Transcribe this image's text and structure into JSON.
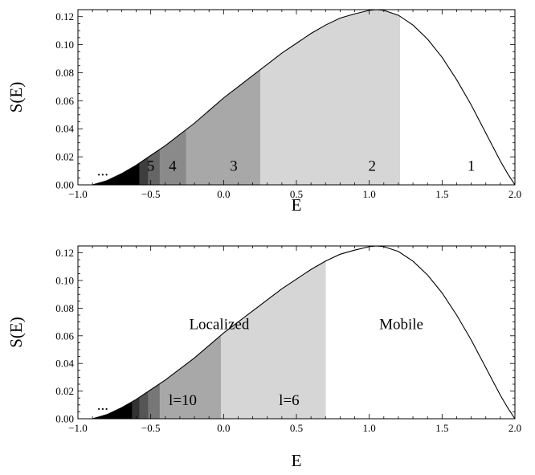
{
  "chart_data": [
    {
      "type": "area",
      "title": "",
      "xlabel": "E",
      "ylabel": "S(E)",
      "xlim": [
        -1.0,
        2.0
      ],
      "ylim": [
        0.0,
        0.125
      ],
      "xticks": [
        -1.0,
        -0.5,
        0.0,
        0.5,
        1.0,
        1.5,
        2.0
      ],
      "xtick_labels": [
        "−1.0",
        "−0.5",
        "0.0",
        "0.5",
        "1.0",
        "1.5",
        "2.0"
      ],
      "yticks": [
        0.0,
        0.02,
        0.04,
        0.06,
        0.08,
        0.1,
        0.12
      ],
      "ytick_labels": [
        "0.00",
        "0.02",
        "0.04",
        "0.06",
        "0.08",
        "0.10",
        "0.12"
      ],
      "curve": {
        "x": [
          -0.9,
          -0.8,
          -0.7,
          -0.6,
          -0.5,
          -0.4,
          -0.3,
          -0.2,
          -0.1,
          0.0,
          0.1,
          0.2,
          0.3,
          0.4,
          0.5,
          0.6,
          0.7,
          0.8,
          0.9,
          1.0,
          1.05,
          1.1,
          1.2,
          1.3,
          1.4,
          1.5,
          1.6,
          1.7,
          1.8,
          1.9,
          1.95,
          2.0
        ],
        "y": [
          0.0,
          0.003,
          0.008,
          0.014,
          0.021,
          0.028,
          0.036,
          0.044,
          0.053,
          0.062,
          0.07,
          0.078,
          0.086,
          0.094,
          0.101,
          0.108,
          0.114,
          0.119,
          0.122,
          0.1245,
          0.125,
          0.1245,
          0.121,
          0.114,
          0.104,
          0.091,
          0.075,
          0.057,
          0.037,
          0.017,
          0.008,
          0.0
        ]
      },
      "bands": [
        {
          "label": "1",
          "x0": 1.21,
          "x1": 2.0,
          "fill": "#ffffff",
          "label_x": 1.7
        },
        {
          "label": "2",
          "x0": 0.25,
          "x1": 1.21,
          "fill": "#d6d6d6",
          "label_x": 1.02
        },
        {
          "label": "3",
          "x0": -0.26,
          "x1": 0.25,
          "fill": "#a8a8a8",
          "label_x": 0.07
        },
        {
          "label": "4",
          "x0": -0.44,
          "x1": -0.26,
          "fill": "#8a8a8a",
          "label_x": -0.35
        },
        {
          "label": "5",
          "x0": -0.52,
          "x1": -0.44,
          "fill": "#656565",
          "label_x": -0.5
        },
        {
          "label": "",
          "x0": -0.58,
          "x1": -0.52,
          "fill": "#3e3e3e",
          "label_x": null
        },
        {
          "label": "",
          "x0": -0.9,
          "x1": -0.58,
          "fill": "#000000",
          "label_x": null
        }
      ],
      "ellipsis": {
        "text": "...",
        "x": -0.83,
        "y": 0.01
      },
      "band_label_y": 0.014,
      "annotations": []
    },
    {
      "type": "area",
      "title": "",
      "xlabel": "E",
      "ylabel": "S(E)",
      "xlim": [
        -1.0,
        2.0
      ],
      "ylim": [
        0.0,
        0.125
      ],
      "xticks": [
        -1.0,
        -0.5,
        0.0,
        0.5,
        1.0,
        1.5,
        2.0
      ],
      "xtick_labels": [
        "−1.0",
        "−0.5",
        "0.0",
        "0.5",
        "1.0",
        "1.5",
        "2.0"
      ],
      "yticks": [
        0.0,
        0.02,
        0.04,
        0.06,
        0.08,
        0.1,
        0.12
      ],
      "ytick_labels": [
        "0.00",
        "0.02",
        "0.04",
        "0.06",
        "0.08",
        "0.10",
        "0.12"
      ],
      "curve": {
        "x": [
          -0.9,
          -0.8,
          -0.7,
          -0.6,
          -0.5,
          -0.4,
          -0.3,
          -0.2,
          -0.1,
          0.0,
          0.1,
          0.2,
          0.3,
          0.4,
          0.5,
          0.6,
          0.7,
          0.8,
          0.9,
          1.0,
          1.05,
          1.1,
          1.2,
          1.3,
          1.4,
          1.5,
          1.6,
          1.7,
          1.8,
          1.9,
          1.95,
          2.0
        ],
        "y": [
          0.0,
          0.003,
          0.008,
          0.014,
          0.021,
          0.028,
          0.036,
          0.044,
          0.053,
          0.062,
          0.07,
          0.078,
          0.086,
          0.094,
          0.101,
          0.108,
          0.114,
          0.119,
          0.122,
          0.1245,
          0.125,
          0.1245,
          0.121,
          0.114,
          0.104,
          0.091,
          0.075,
          0.057,
          0.037,
          0.017,
          0.008,
          0.0
        ]
      },
      "bands": [
        {
          "label": "",
          "x0": 0.7,
          "x1": 2.0,
          "fill": "#ffffff",
          "label_x": null
        },
        {
          "label": "l=6",
          "x0": -0.02,
          "x1": 0.7,
          "fill": "#d6d6d6",
          "label_x": 0.45
        },
        {
          "label": "l=10",
          "x0": -0.44,
          "x1": -0.02,
          "fill": "#a8a8a8",
          "label_x": -0.28
        },
        {
          "label": "",
          "x0": -0.52,
          "x1": -0.44,
          "fill": "#777777",
          "label_x": null
        },
        {
          "label": "",
          "x0": -0.58,
          "x1": -0.52,
          "fill": "#555555",
          "label_x": null
        },
        {
          "label": "",
          "x0": -0.63,
          "x1": -0.58,
          "fill": "#333333",
          "label_x": null
        },
        {
          "label": "",
          "x0": -0.9,
          "x1": -0.63,
          "fill": "#000000",
          "label_x": null
        }
      ],
      "ellipsis": {
        "text": "...",
        "x": -0.83,
        "y": 0.01
      },
      "band_label_y": 0.014,
      "annotations": [
        {
          "text": "Localized",
          "x": -0.03,
          "y": 0.069
        },
        {
          "text": "Mobile",
          "x": 1.22,
          "y": 0.069
        }
      ]
    }
  ]
}
